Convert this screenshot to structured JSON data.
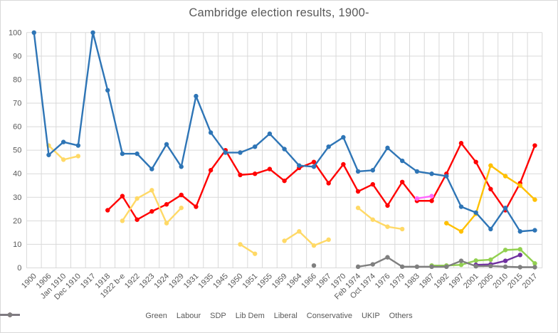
{
  "title": "Cambridge election results, 1900-",
  "axis_color": "#d9d9d9",
  "label_color": "#595959",
  "chart_data": {
    "type": "line",
    "title": "Cambridge election results, 1900-",
    "xlabel": "",
    "ylabel": "",
    "ylim": [
      0,
      100
    ],
    "yticks": [
      0,
      10,
      20,
      30,
      40,
      50,
      60,
      70,
      80,
      90,
      100
    ],
    "grid": true,
    "legend_position": "bottom",
    "categories": [
      "1900",
      "1906",
      "Jan 1910",
      "Dec 1910",
      "1917",
      "1918",
      "1922 b-e",
      "1922",
      "1923",
      "1924",
      "1929",
      "1931",
      "1935",
      "1945",
      "1950",
      "1951",
      "1955",
      "1959",
      "1964",
      "1966",
      "1967",
      "1970",
      "Feb 1974",
      "Oct 1974",
      "1976",
      "1979",
      "1983",
      "1987",
      "1992",
      "1997",
      "2001",
      "2005",
      "2010",
      "2015",
      "2017"
    ],
    "series": [
      {
        "name": "Green",
        "color": "#92D050",
        "values": [
          null,
          null,
          null,
          null,
          null,
          null,
          null,
          null,
          null,
          null,
          null,
          null,
          null,
          null,
          null,
          null,
          null,
          null,
          null,
          null,
          null,
          null,
          null,
          null,
          null,
          null,
          null,
          1,
          1,
          1.3,
          3.1,
          3.5,
          7.6,
          7.9,
          1.9
        ]
      },
      {
        "name": "Labour",
        "color": "#FF0000",
        "values": [
          null,
          null,
          null,
          null,
          null,
          24.5,
          30.5,
          20.5,
          24,
          27,
          31,
          26,
          41.5,
          50,
          39.5,
          40,
          42,
          37,
          42.5,
          45,
          36,
          44,
          32.5,
          35.5,
          26.5,
          36.5,
          28.5,
          28.5,
          40,
          53,
          45,
          33.5,
          24.5,
          36,
          52
        ]
      },
      {
        "name": "SDP",
        "color": "#FF66FF",
        "values": [
          null,
          null,
          null,
          null,
          null,
          null,
          null,
          null,
          null,
          null,
          null,
          null,
          null,
          null,
          null,
          null,
          null,
          null,
          null,
          null,
          null,
          null,
          null,
          null,
          null,
          null,
          29.5,
          30.5,
          null,
          null,
          null,
          null,
          null,
          null,
          null
        ]
      },
      {
        "name": "Lib Dem",
        "color": "#FFC000",
        "values": [
          null,
          null,
          null,
          null,
          null,
          null,
          null,
          null,
          null,
          null,
          null,
          null,
          null,
          null,
          null,
          null,
          null,
          null,
          null,
          null,
          null,
          null,
          null,
          null,
          null,
          null,
          null,
          null,
          19,
          15.5,
          23,
          43.5,
          39,
          35,
          29
        ]
      },
      {
        "name": "Liberal",
        "color": "#FFD966",
        "values": [
          null,
          52,
          46,
          47.5,
          null,
          null,
          20,
          29.5,
          33,
          19,
          25.5,
          null,
          null,
          null,
          10,
          6,
          null,
          11.5,
          15.5,
          9.5,
          12,
          null,
          25.5,
          20.5,
          17.5,
          16.5,
          null,
          null,
          null,
          null,
          null,
          null,
          null,
          null,
          null
        ]
      },
      {
        "name": "Conservative",
        "color": "#2E75B6",
        "values": [
          100,
          48,
          53.5,
          52,
          100,
          75.5,
          48.5,
          48.5,
          42,
          52.5,
          43,
          73,
          57.5,
          49,
          49,
          51.5,
          57,
          50.5,
          43.5,
          43,
          51.5,
          55.5,
          41,
          41.5,
          51,
          45.5,
          41,
          40,
          39,
          26,
          23.5,
          16.5,
          25.5,
          15.5,
          16
        ]
      },
      {
        "name": "UKIP",
        "color": "#7030A0",
        "values": [
          null,
          null,
          null,
          null,
          null,
          null,
          null,
          null,
          null,
          null,
          null,
          null,
          null,
          null,
          null,
          null,
          null,
          null,
          null,
          null,
          null,
          null,
          null,
          null,
          null,
          null,
          null,
          null,
          null,
          null,
          1.3,
          1.5,
          3,
          5.5,
          null
        ]
      },
      {
        "name": "Others",
        "color": "#7F7F7F",
        "values": [
          null,
          null,
          null,
          null,
          null,
          null,
          null,
          null,
          null,
          null,
          null,
          null,
          null,
          null,
          null,
          null,
          null,
          null,
          null,
          1,
          null,
          null,
          0.5,
          1.5,
          4.5,
          0.5,
          0.5,
          0.5,
          0.5,
          3,
          0.7,
          0.8,
          0.5,
          0.3,
          0.3
        ]
      }
    ]
  }
}
